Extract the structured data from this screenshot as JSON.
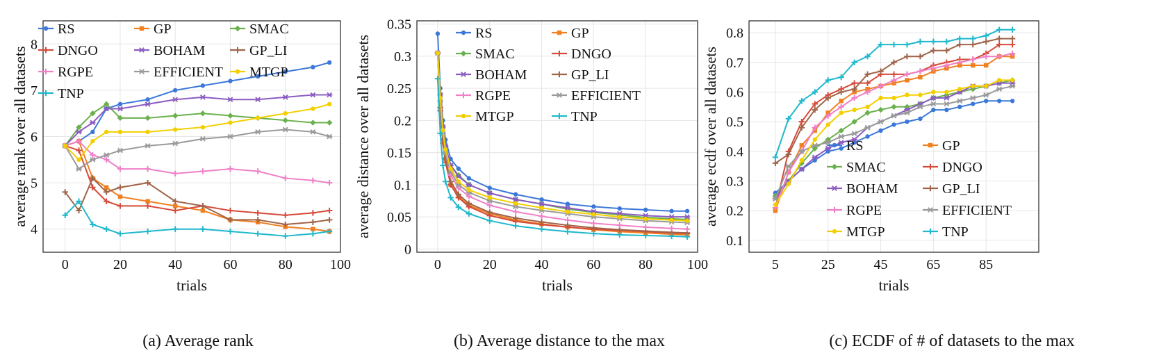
{
  "captions": {
    "a": "(a) Average rank",
    "b": "(b) Average distance to the max",
    "c": "(c) ECDF of # of datasets to the max"
  },
  "series_names": [
    "RS",
    "GP",
    "SMAC",
    "DNGO",
    "BOHAM",
    "GP_LI",
    "RGPE",
    "EFFICIENT",
    "MTGP",
    "TNP"
  ],
  "series_colors": [
    "#3c78d8",
    "#f08020",
    "#6ab04c",
    "#d64a3a",
    "#8a5cc0",
    "#a0644a",
    "#ef80c8",
    "#9a9a9a",
    "#f3cf00",
    "#1fb8cc"
  ],
  "chart_data": [
    {
      "type": "line",
      "title": "",
      "xlabel": "trials",
      "ylabel": "average rank over all datasets",
      "xlim": [
        -8,
        100
      ],
      "ylim": [
        3.5,
        8.5
      ],
      "xticks": [
        0,
        20,
        40,
        60,
        80,
        100
      ],
      "yticks": [
        4,
        5,
        6,
        7,
        8
      ],
      "grid": true,
      "legend": "top, 3 columns",
      "x": [
        0,
        5,
        10,
        15,
        20,
        30,
        40,
        50,
        60,
        70,
        80,
        90,
        96
      ],
      "series": [
        {
          "name": "RS",
          "values": [
            5.8,
            5.9,
            6.1,
            6.6,
            6.7,
            6.8,
            7.0,
            7.1,
            7.2,
            7.3,
            7.4,
            7.5,
            7.6
          ]
        },
        {
          "name": "GP",
          "values": [
            5.8,
            5.9,
            5.1,
            4.9,
            4.7,
            4.6,
            4.5,
            4.4,
            4.2,
            4.15,
            4.05,
            4.0,
            3.95
          ]
        },
        {
          "name": "SMAC",
          "values": [
            5.8,
            6.2,
            6.5,
            6.7,
            6.4,
            6.4,
            6.45,
            6.5,
            6.45,
            6.4,
            6.35,
            6.3,
            6.3
          ]
        },
        {
          "name": "DNGO",
          "values": [
            5.8,
            5.7,
            4.9,
            4.6,
            4.5,
            4.5,
            4.4,
            4.5,
            4.4,
            4.35,
            4.3,
            4.35,
            4.4
          ]
        },
        {
          "name": "BOHAM",
          "values": [
            5.8,
            6.1,
            6.3,
            6.6,
            6.6,
            6.7,
            6.8,
            6.85,
            6.8,
            6.8,
            6.85,
            6.9,
            6.9
          ]
        },
        {
          "name": "GP_LI",
          "values": [
            4.8,
            4.4,
            5.1,
            4.8,
            4.9,
            5.0,
            4.6,
            4.5,
            4.2,
            4.2,
            4.1,
            4.15,
            4.2
          ]
        },
        {
          "name": "RGPE",
          "values": [
            5.8,
            5.9,
            5.6,
            5.5,
            5.3,
            5.3,
            5.2,
            5.25,
            5.3,
            5.25,
            5.1,
            5.05,
            5.0
          ]
        },
        {
          "name": "EFFICIENT",
          "values": [
            5.8,
            5.3,
            5.5,
            5.6,
            5.7,
            5.8,
            5.85,
            5.95,
            6.0,
            6.1,
            6.15,
            6.1,
            6.0
          ]
        },
        {
          "name": "MTGP",
          "values": [
            5.8,
            5.5,
            5.9,
            6.1,
            6.1,
            6.1,
            6.15,
            6.2,
            6.3,
            6.4,
            6.5,
            6.6,
            6.7
          ]
        },
        {
          "name": "TNP",
          "values": [
            4.3,
            4.6,
            4.1,
            4.0,
            3.9,
            3.95,
            4.0,
            4.0,
            3.95,
            3.9,
            3.85,
            3.9,
            3.95
          ]
        }
      ]
    },
    {
      "type": "line",
      "title": "",
      "xlabel": "trials",
      "ylabel": "average distance over all datasets",
      "xlim": [
        -8,
        100
      ],
      "ylim": [
        -0.005,
        0.355
      ],
      "xticks": [
        0,
        20,
        40,
        60,
        80,
        100
      ],
      "yticks": [
        0,
        0.05,
        0.1,
        0.15,
        0.2,
        0.25,
        0.3,
        0.35
      ],
      "grid": true,
      "legend": "top, 2 columns",
      "x": [
        0,
        1,
        2,
        3,
        5,
        8,
        12,
        20,
        30,
        40,
        50,
        60,
        70,
        80,
        90,
        96
      ],
      "series": [
        {
          "name": "RS",
          "values": [
            0.335,
            0.25,
            0.2,
            0.17,
            0.14,
            0.125,
            0.11,
            0.095,
            0.085,
            0.077,
            0.07,
            0.066,
            0.063,
            0.061,
            0.059,
            0.059
          ]
        },
        {
          "name": "GP",
          "values": [
            0.305,
            0.22,
            0.17,
            0.14,
            0.1,
            0.082,
            0.068,
            0.055,
            0.045,
            0.039,
            0.034,
            0.03,
            0.027,
            0.025,
            0.023,
            0.022
          ]
        },
        {
          "name": "SMAC",
          "values": [
            0.305,
            0.24,
            0.19,
            0.16,
            0.13,
            0.115,
            0.1,
            0.087,
            0.077,
            0.07,
            0.062,
            0.057,
            0.053,
            0.049,
            0.047,
            0.046
          ]
        },
        {
          "name": "DNGO",
          "values": [
            0.305,
            0.215,
            0.165,
            0.135,
            0.1,
            0.08,
            0.066,
            0.052,
            0.043,
            0.038,
            0.034,
            0.031,
            0.029,
            0.027,
            0.025,
            0.024
          ]
        },
        {
          "name": "BOHAM",
          "values": [
            0.305,
            0.24,
            0.19,
            0.16,
            0.13,
            0.113,
            0.1,
            0.087,
            0.077,
            0.07,
            0.064,
            0.058,
            0.055,
            0.052,
            0.05,
            0.05
          ]
        },
        {
          "name": "GP_LI",
          "values": [
            0.305,
            0.22,
            0.17,
            0.14,
            0.105,
            0.085,
            0.071,
            0.057,
            0.048,
            0.042,
            0.037,
            0.033,
            0.03,
            0.028,
            0.026,
            0.025
          ]
        },
        {
          "name": "RGPE",
          "values": [
            0.305,
            0.23,
            0.18,
            0.15,
            0.115,
            0.095,
            0.082,
            0.068,
            0.058,
            0.051,
            0.045,
            0.04,
            0.037,
            0.034,
            0.032,
            0.031
          ]
        },
        {
          "name": "EFFICIENT",
          "values": [
            0.305,
            0.23,
            0.18,
            0.15,
            0.12,
            0.1,
            0.088,
            0.075,
            0.066,
            0.06,
            0.055,
            0.05,
            0.047,
            0.044,
            0.042,
            0.041
          ]
        },
        {
          "name": "MTGP",
          "values": [
            0.305,
            0.235,
            0.185,
            0.155,
            0.125,
            0.105,
            0.092,
            0.08,
            0.071,
            0.064,
            0.058,
            0.054,
            0.05,
            0.047,
            0.045,
            0.044
          ]
        },
        {
          "name": "TNP",
          "values": [
            0.265,
            0.18,
            0.13,
            0.105,
            0.08,
            0.065,
            0.055,
            0.044,
            0.036,
            0.031,
            0.027,
            0.024,
            0.022,
            0.021,
            0.02,
            0.019
          ]
        }
      ]
    },
    {
      "type": "line",
      "title": "",
      "xlabel": "trials",
      "ylabel": "average ecdf over all datasets",
      "xlim": [
        -5,
        105
      ],
      "ylim": [
        0.06,
        0.84
      ],
      "xticks": [
        5,
        25,
        45,
        65,
        85
      ],
      "yticks": [
        0.1,
        0.2,
        0.3,
        0.4,
        0.5,
        0.6,
        0.7,
        0.8
      ],
      "grid": true,
      "legend": "bottom-right, 2 columns",
      "x": [
        5,
        10,
        15,
        20,
        25,
        30,
        35,
        40,
        45,
        50,
        55,
        60,
        65,
        70,
        75,
        80,
        85,
        90,
        95
      ],
      "series": [
        {
          "name": "RS",
          "values": [
            0.26,
            0.3,
            0.34,
            0.37,
            0.4,
            0.41,
            0.43,
            0.45,
            0.47,
            0.49,
            0.5,
            0.51,
            0.54,
            0.54,
            0.55,
            0.56,
            0.57,
            0.57,
            0.57
          ]
        },
        {
          "name": "GP",
          "values": [
            0.2,
            0.33,
            0.42,
            0.47,
            0.53,
            0.57,
            0.6,
            0.61,
            0.62,
            0.63,
            0.64,
            0.65,
            0.67,
            0.68,
            0.69,
            0.69,
            0.69,
            0.72,
            0.72
          ]
        },
        {
          "name": "SMAC",
          "values": [
            0.25,
            0.3,
            0.36,
            0.41,
            0.44,
            0.47,
            0.5,
            0.53,
            0.54,
            0.55,
            0.55,
            0.56,
            0.58,
            0.59,
            0.6,
            0.61,
            0.62,
            0.63,
            0.64
          ]
        },
        {
          "name": "DNGO",
          "values": [
            0.21,
            0.4,
            0.5,
            0.56,
            0.59,
            0.61,
            0.63,
            0.63,
            0.66,
            0.66,
            0.66,
            0.67,
            0.69,
            0.7,
            0.71,
            0.71,
            0.73,
            0.76,
            0.76
          ]
        },
        {
          "name": "BOHAM",
          "values": [
            0.24,
            0.3,
            0.34,
            0.38,
            0.41,
            0.43,
            0.44,
            0.48,
            0.5,
            0.52,
            0.54,
            0.56,
            0.58,
            0.58,
            0.6,
            0.62,
            0.62,
            0.63,
            0.63
          ]
        },
        {
          "name": "GP_LI",
          "values": [
            0.36,
            0.39,
            0.48,
            0.54,
            0.58,
            0.6,
            0.61,
            0.66,
            0.67,
            0.7,
            0.72,
            0.72,
            0.74,
            0.74,
            0.76,
            0.76,
            0.77,
            0.78,
            0.78
          ]
        },
        {
          "name": "RGPE",
          "values": [
            0.21,
            0.33,
            0.4,
            0.48,
            0.52,
            0.55,
            0.58,
            0.6,
            0.62,
            0.64,
            0.66,
            0.67,
            0.68,
            0.69,
            0.7,
            0.71,
            0.72,
            0.72,
            0.73
          ]
        },
        {
          "name": "EFFICIENT",
          "values": [
            0.24,
            0.35,
            0.4,
            0.42,
            0.43,
            0.45,
            0.46,
            0.48,
            0.5,
            0.52,
            0.53,
            0.55,
            0.56,
            0.56,
            0.57,
            0.58,
            0.59,
            0.61,
            0.62
          ]
        },
        {
          "name": "MTGP",
          "values": [
            0.22,
            0.29,
            0.37,
            0.44,
            0.49,
            0.53,
            0.54,
            0.55,
            0.58,
            0.58,
            0.59,
            0.59,
            0.6,
            0.6,
            0.61,
            0.62,
            0.62,
            0.64,
            0.64
          ]
        },
        {
          "name": "TNP",
          "values": [
            0.38,
            0.51,
            0.57,
            0.6,
            0.64,
            0.65,
            0.7,
            0.72,
            0.76,
            0.76,
            0.76,
            0.77,
            0.77,
            0.77,
            0.78,
            0.78,
            0.79,
            0.81,
            0.81
          ]
        }
      ]
    }
  ]
}
